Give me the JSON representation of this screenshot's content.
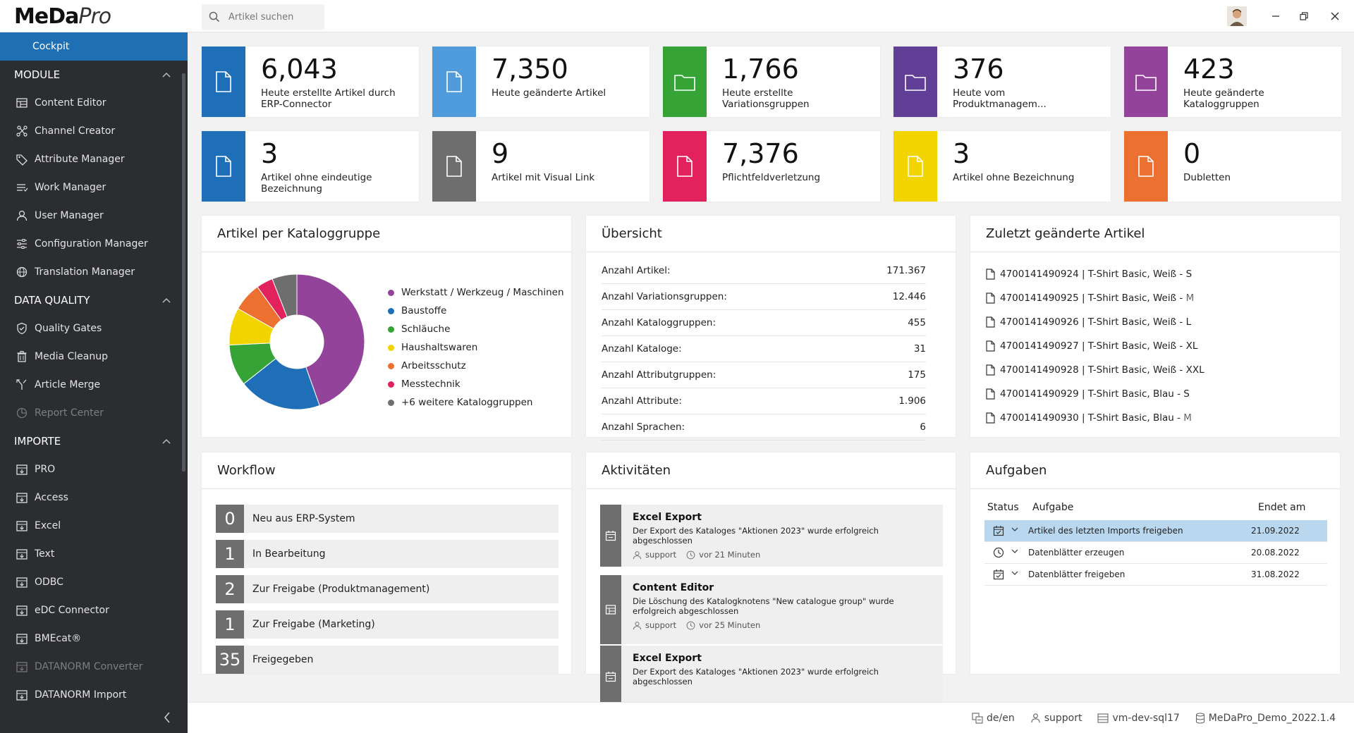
{
  "app": {
    "logo_main": "MeDa",
    "logo_sub": "Pro"
  },
  "search": {
    "placeholder": "Artikel suchen"
  },
  "sidebar": {
    "active": "Cockpit",
    "sections": [
      {
        "title": "MODULE",
        "items": [
          "Content Editor",
          "Channel Creator",
          "Attribute Manager",
          "Work Manager",
          "User Manager",
          "Configuration Manager",
          "Translation Manager"
        ]
      },
      {
        "title": "DATA QUALITY",
        "items": [
          "Quality Gates",
          "Media Cleanup",
          "Article Merge",
          "Report Center"
        ]
      },
      {
        "title": "IMPORTE",
        "items": [
          "PRO",
          "Access",
          "Excel",
          "Text",
          "ODBC",
          "eDC Connector",
          "BMEcat®",
          "DATANORM Converter",
          "DATANORM Import"
        ]
      }
    ]
  },
  "tiles": [
    {
      "value": "6,043",
      "label": "Heute erstellte Artikel durch ERP-Connector",
      "color": "#1e6fb8"
    },
    {
      "value": "7,350",
      "label": "Heute geänderte Artikel",
      "color": "#4f9bdb"
    },
    {
      "value": "1,766",
      "label": "Heute erstellte Variationsgruppen",
      "color": "#35a336"
    },
    {
      "value": "376",
      "label": "Heute vom Produktmanagem...",
      "color": "#613f97"
    },
    {
      "value": "423",
      "label": "Heute geänderte Kataloggruppen",
      "color": "#93449a"
    },
    {
      "value": "3",
      "label": "Artikel ohne eindeutige Bezeichnung",
      "color": "#1e6fb8"
    },
    {
      "value": "9",
      "label": "Artikel mit Visual Link",
      "color": "#6e6e6e"
    },
    {
      "value": "7,376",
      "label": "Pflichtfeldverletzung",
      "color": "#e2225d"
    },
    {
      "value": "3",
      "label": "Artikel ohne Bezeichnung",
      "color": "#f2d400"
    },
    {
      "value": "0",
      "label": "Dubletten",
      "color": "#ec7030"
    }
  ],
  "catalog_panel": {
    "title": "Artikel per Kataloggruppe",
    "chart_data": {
      "type": "pie",
      "categories": [
        "Werkstatt / Werkzeug / Maschinen",
        "Baustoffe",
        "Schläuche",
        "Haushaltswaren",
        "Arbeitsschutz",
        "Messtechnik",
        "+6 weitere Kataloggruppen"
      ],
      "values": [
        45,
        20,
        10,
        9,
        7,
        4,
        6
      ],
      "colors": [
        "#93449a",
        "#1e6fb8",
        "#35a336",
        "#f2d400",
        "#ec7030",
        "#e2225d",
        "#6e6e6e"
      ],
      "legend": "right"
    }
  },
  "overview": {
    "title": "Übersicht",
    "rows": [
      {
        "label": "Anzahl Artikel:",
        "value": "171.367"
      },
      {
        "label": "Anzahl Variationsgruppen:",
        "value": "12.446"
      },
      {
        "label": "Anzahl Kataloggruppen:",
        "value": "455"
      },
      {
        "label": "Anzahl Kataloge:",
        "value": "31"
      },
      {
        "label": "Anzahl Attributgruppen:",
        "value": "175"
      },
      {
        "label": "Anzahl Attribute:",
        "value": "1.906"
      },
      {
        "label": "Anzahl Sprachen:",
        "value": "6"
      }
    ]
  },
  "recent": {
    "title": "Zuletzt geänderte Artikel",
    "items": [
      {
        "main": "4700141490924 | T-Shirt Basic, Weiß - ",
        "size": "S"
      },
      {
        "main": "4700141490925 | T-Shirt Basic, Weiß - ",
        "size": "M"
      },
      {
        "main": "4700141490926 | T-Shirt Basic, Weiß - ",
        "size": "L"
      },
      {
        "main": "4700141490927 | T-Shirt Basic, Weiß - ",
        "size": "XL"
      },
      {
        "main": "4700141490928 | T-Shirt Basic, Weiß - ",
        "size": "XXL"
      },
      {
        "main": "4700141490929 | T-Shirt Basic, Blau - ",
        "size": "S"
      },
      {
        "main": "4700141490930 | T-Shirt Basic, Blau - ",
        "size": "M"
      }
    ]
  },
  "workflow": {
    "title": "Workflow",
    "items": [
      {
        "count": "0",
        "label": "Neu aus ERP-System"
      },
      {
        "count": "1",
        "label": "In Bearbeitung"
      },
      {
        "count": "2",
        "label": "Zur Freigabe (Produktmanagement)"
      },
      {
        "count": "1",
        "label": "Zur Freigabe (Marketing)"
      },
      {
        "count": "35",
        "label": "Freigegeben"
      }
    ]
  },
  "activities": {
    "title": "Aktivitäten",
    "items": [
      {
        "title": "Excel Export",
        "text": "Der Export des Kataloges \"Aktionen 2023\" wurde erfolgreich abgeschlossen",
        "user": "support",
        "time": "vor 21 Minuten",
        "icon": "calendar-icon"
      },
      {
        "title": "Content Editor",
        "text": "Die Löschung des Katalogknotens \"New catalogue group\" wurde erfolgreich abgeschlossen",
        "user": "support",
        "time": "vor 25 Minuten",
        "icon": "grid-icon"
      },
      {
        "title": "Excel Export",
        "text": "Der Export des Kataloges \"Aktionen 2023\" wurde erfolgreich abgeschlossen",
        "user": "",
        "time": "",
        "icon": "calendar-icon"
      }
    ]
  },
  "tasks": {
    "title": "Aufgaben",
    "headers": {
      "status": "Status",
      "task": "Aufgabe",
      "end": "Endet am"
    },
    "rows": [
      {
        "task": "Artikel des letzten Imports freigeben",
        "end": "21.09.2022",
        "icon": "calendar-check-icon",
        "selected": true
      },
      {
        "task": "Datenblätter erzeugen",
        "end": "20.08.2022",
        "icon": "clock-icon",
        "selected": false
      },
      {
        "task": "Datenblätter freigeben",
        "end": "31.08.2022",
        "icon": "calendar-check-icon",
        "selected": false
      }
    ]
  },
  "footer": {
    "language": "de/en",
    "user": "support",
    "server": "vm-dev-sql17",
    "database": "MeDaPro_Demo_2022.1.4"
  }
}
